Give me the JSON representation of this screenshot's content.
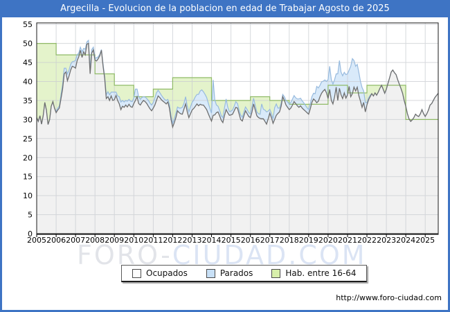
{
  "window": {
    "title": "Argecilla - Evolucion de la poblacion en edad de Trabajar Agosto de 2025"
  },
  "watermark": {
    "part1": "FORO-",
    "part2": "CIUDAD.COM"
  },
  "footer": {
    "url": "http://www.foro-ciudad.com"
  },
  "colors": {
    "frame_blue": "#3e74c4",
    "grid": "#c9ccd1",
    "plot_border": "#1a1a1a",
    "ocupados_fill": "#f1f1f1",
    "ocupados_stroke": "#6e6e6e",
    "parados_fill": "#d9eafa",
    "parados_stroke": "#97bade",
    "hab_fill": "#e4f3cb",
    "hab_stroke": "#8fba66",
    "tick_text": "#000000"
  },
  "legend": {
    "items": [
      {
        "label": "Ocupados",
        "swatch": "#fdfdfd"
      },
      {
        "label": "Parados",
        "swatch": "#c8e0f6"
      },
      {
        "label": "Hab. entre 16-64",
        "swatch": "#d8efab"
      }
    ]
  },
  "chart_data": {
    "type": "area",
    "title": "Argecilla - Evolucion de la poblacion en edad de Trabajar Agosto de 2025",
    "xlabel": "",
    "ylabel": "",
    "x_range": [
      2005,
      2025.67
    ],
    "ylim": [
      0,
      55.4
    ],
    "grid": true,
    "legend_position": "bottom",
    "y_axis": {
      "ticks": [
        0,
        5,
        10,
        15,
        20,
        25,
        30,
        35,
        40,
        45,
        50,
        55
      ]
    },
    "x_axis": {
      "tick_years": [
        2005,
        2006,
        2007,
        2008,
        2009,
        2010,
        2011,
        2012,
        2013,
        2014,
        2015,
        2016,
        2017,
        2018,
        2019,
        2020,
        2021,
        2022,
        2023,
        2024,
        2025
      ]
    },
    "series_names": [
      "Ocupados",
      "Parados",
      "Hab. entre 16-64"
    ],
    "hab_16_64": {
      "years": [
        2005,
        2006,
        2007,
        2008,
        2009,
        2010,
        2011,
        2012,
        2013,
        2014,
        2015,
        2016,
        2017,
        2018,
        2019,
        2020,
        2021,
        2022,
        2023,
        2024,
        2025
      ],
      "values": [
        50,
        47,
        47,
        42,
        39,
        36,
        38,
        41,
        41,
        35,
        35,
        36,
        35,
        34,
        34,
        39,
        37,
        39,
        39,
        30,
        30
      ]
    },
    "monthly": {
      "start_year": 2005,
      "points_per_year": 12,
      "end_label": "Agosto 2025",
      "ocupados": [
        30.5,
        29.5,
        31,
        28.8,
        31,
        34.5,
        32.5,
        28.7,
        30,
        33.5,
        34.7,
        33,
        31.8,
        32.5,
        33,
        35.5,
        38,
        42,
        42.5,
        40.2,
        41.5,
        43,
        44,
        43.8,
        43.5,
        45.5,
        46.5,
        48.2,
        46.3,
        47.8,
        47,
        49.8,
        50,
        42,
        47.5,
        48.3,
        45.6,
        45.4,
        46,
        46.8,
        48.2,
        44,
        40.8,
        35.5,
        36,
        35,
        36.2,
        35,
        35.2,
        36.3,
        35,
        34.1,
        32.6,
        33.5,
        33.2,
        33.8,
        33.3,
        34,
        33.4,
        33.2,
        34.2,
        35,
        36,
        34.2,
        33.8,
        34.5,
        35,
        34.7,
        34.2,
        33.5,
        32.8,
        32.3,
        33,
        33.8,
        35,
        36.2,
        35.8,
        35.2,
        34.8,
        34.5,
        34.1,
        34.6,
        33,
        30,
        28,
        29.2,
        30.5,
        32.3,
        31.8,
        31.5,
        31.4,
        32.8,
        34.1,
        32,
        30.5,
        31.5,
        32.5,
        32.9,
        33.5,
        34.1,
        33.6,
        34,
        33.8,
        33.8,
        33.2,
        32.6,
        31.5,
        30.5,
        29.6,
        31.1,
        31.2,
        31.8,
        32,
        31,
        29.8,
        29.2,
        31,
        32.6,
        31.8,
        31.1,
        31.2,
        31.4,
        32.3,
        33.2,
        33,
        31.5,
        30,
        29.6,
        31,
        32.3,
        31.5,
        30.8,
        30.5,
        32,
        34.1,
        32.5,
        31,
        30.5,
        30.3,
        30.2,
        30.2,
        29.5,
        28.8,
        30.2,
        31.7,
        30.5,
        29,
        30,
        31.1,
        31.6,
        32,
        33.5,
        36,
        35,
        33.8,
        33.2,
        32.6,
        33,
        33.8,
        34.7,
        34.2,
        33.6,
        33.2,
        33.6,
        33,
        32.6,
        32.2,
        31.8,
        31.4,
        32.8,
        34.5,
        35.4,
        35,
        34.4,
        34.8,
        36,
        36.9,
        37.5,
        37.9,
        37,
        35.5,
        37.9,
        35,
        34.1,
        36,
        38.5,
        35,
        38.2,
        36.5,
        35.5,
        37,
        35.6,
        36.5,
        38.7,
        36,
        36.8,
        38.5,
        37.5,
        38.5,
        36.3,
        34.8,
        33.2,
        34.5,
        32,
        33.8,
        35.2,
        36,
        36.8,
        36.2,
        37,
        36.4,
        37.2,
        38.2,
        39,
        38,
        36.9,
        38,
        39.5,
        41,
        42.5,
        43,
        42.3,
        41.8,
        40.5,
        39.3,
        38.2,
        36.9,
        35,
        33.5,
        31.5,
        30.2,
        29.5,
        29.9,
        30.5,
        31.4,
        31,
        30.8,
        31.5,
        32.6,
        31.5,
        30.8,
        31.5,
        32.5,
        33.8,
        34.2,
        35,
        35.8,
        36.9
      ],
      "parados": [
        0,
        0,
        0,
        0,
        0,
        0,
        0,
        0,
        0,
        0,
        0,
        0,
        0.3,
        0.5,
        0.5,
        1,
        1.2,
        1.5,
        1,
        1.8,
        1.5,
        1.5,
        1.2,
        1.5,
        2,
        1.5,
        1,
        0.8,
        1.5,
        0.9,
        1.5,
        0.6,
        0.8,
        1.5,
        0.9,
        0.7,
        0.6,
        0.8,
        0.5,
        0.4,
        0.2,
        0.5,
        0.5,
        1,
        1.3,
        1.5,
        1,
        2.2,
        2,
        0.9,
        1.2,
        1.9,
        2,
        1.5,
        1.4,
        1.2,
        1.5,
        1.3,
        1.4,
        1.5,
        1.5,
        3,
        2,
        1.8,
        1.5,
        1.3,
        1,
        1.2,
        1.3,
        1.5,
        1.5,
        1.5,
        1.5,
        1.8,
        2,
        1.5,
        1.3,
        1.2,
        1,
        0.8,
        0.9,
        0.7,
        1,
        1,
        1,
        1,
        1.2,
        1,
        1.2,
        1.5,
        1.8,
        1.5,
        1.9,
        1.5,
        1.5,
        1.8,
        2,
        2.2,
        2.5,
        2.5,
        3,
        3.5,
        4,
        3.5,
        3.4,
        3.2,
        2.8,
        2.4,
        2.1,
        9.3,
        4,
        2,
        1.5,
        1.4,
        1.2,
        1.3,
        2,
        2.8,
        1.5,
        1,
        1,
        1.1,
        1.2,
        1.5,
        1.2,
        1,
        1.2,
        1,
        1,
        1,
        1.1,
        1,
        1,
        1.5,
        1.5,
        1.2,
        1,
        1,
        1.1,
        3.9,
        2.5,
        3,
        3.2,
        2,
        1,
        1.1,
        1.2,
        3.1,
        3,
        1.4,
        1,
        0.8,
        0.6,
        1,
        1.2,
        1.4,
        1.5,
        1.5,
        1.6,
        1.6,
        1.5,
        1.8,
        2.2,
        2,
        1.9,
        1.8,
        1.5,
        1.3,
        1.2,
        1.4,
        1.5,
        1.5,
        1.8,
        4.3,
        3.5,
        3,
        3,
        2.6,
        2.5,
        3,
        5,
        6.1,
        5.5,
        5.2,
        4.5,
        3.5,
        7,
        7.3,
        6,
        6,
        5.4,
        6.2,
        5.5,
        4.3,
        8,
        9.2,
        7,
        6.5,
        6,
        6.1,
        5.2,
        5.2,
        3,
        2.5,
        0.6,
        0.5,
        0.4,
        0,
        0,
        0,
        0,
        0,
        0,
        0,
        0,
        0,
        0,
        0,
        0,
        0,
        0,
        0,
        0,
        0,
        0,
        0,
        0,
        0,
        0,
        0,
        0,
        0,
        0,
        0,
        0,
        0,
        0,
        0,
        0,
        0,
        0,
        0,
        0,
        0,
        0,
        0,
        0,
        0
      ]
    }
  }
}
